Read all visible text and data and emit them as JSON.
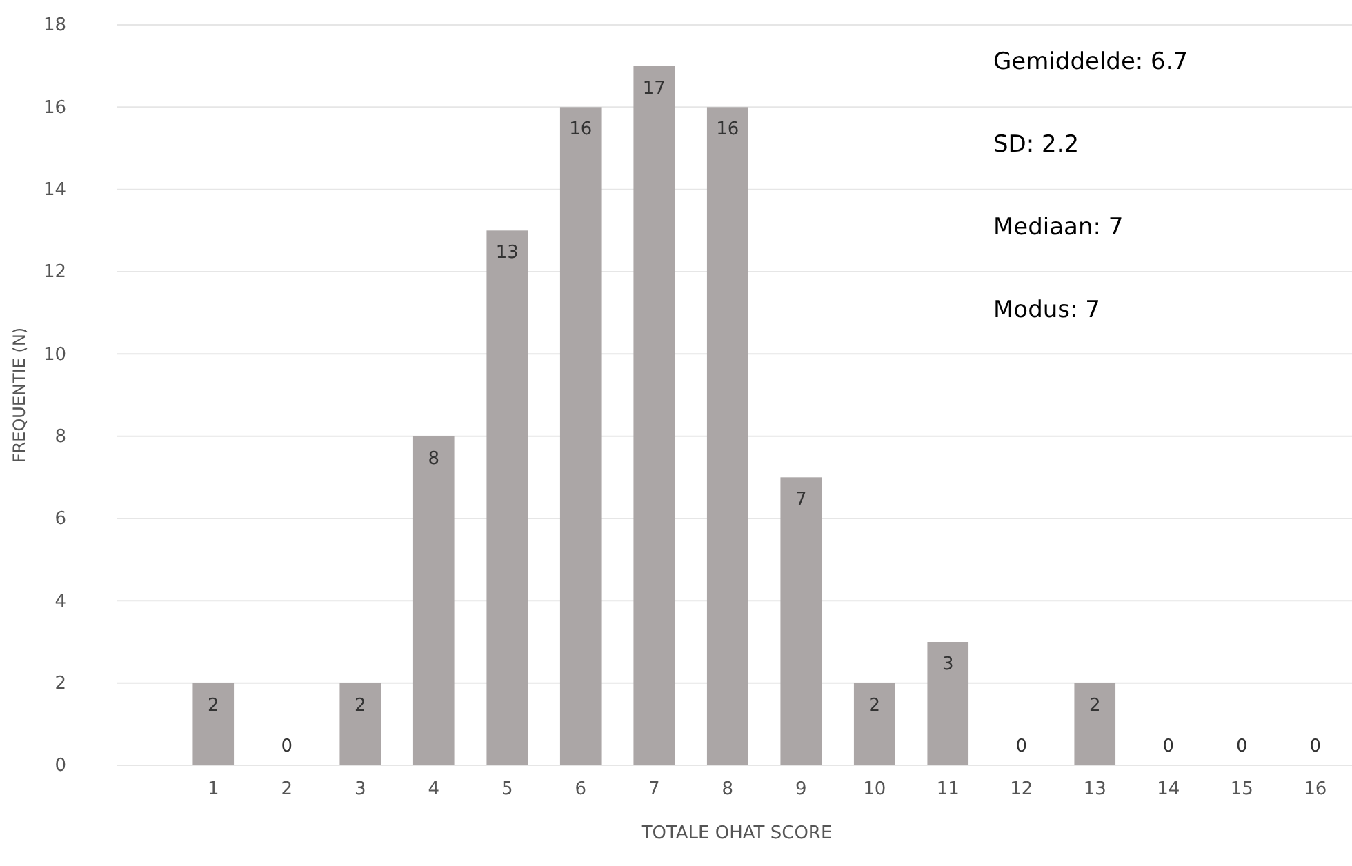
{
  "chart_data": {
    "type": "bar",
    "xlabel": "TOTALE OHAT SCORE",
    "ylabel": "FREQUENTIE (N)",
    "categories": [
      "1",
      "2",
      "3",
      "4",
      "5",
      "6",
      "7",
      "8",
      "9",
      "10",
      "11",
      "12",
      "13",
      "14",
      "15",
      "16"
    ],
    "values": [
      2,
      0,
      2,
      8,
      13,
      16,
      17,
      16,
      7,
      2,
      3,
      0,
      2,
      0,
      0,
      0
    ],
    "color": "#aba6a6",
    "ylim": [
      0,
      18
    ],
    "yticks": [
      0,
      2,
      4,
      6,
      8,
      10,
      12,
      14,
      16,
      18
    ],
    "grid": "y",
    "data_labels": true,
    "annotations": [
      "Gemiddelde: 6.7",
      "SD: 2.2",
      "Mediaan: 7",
      "Modus: 7"
    ]
  }
}
